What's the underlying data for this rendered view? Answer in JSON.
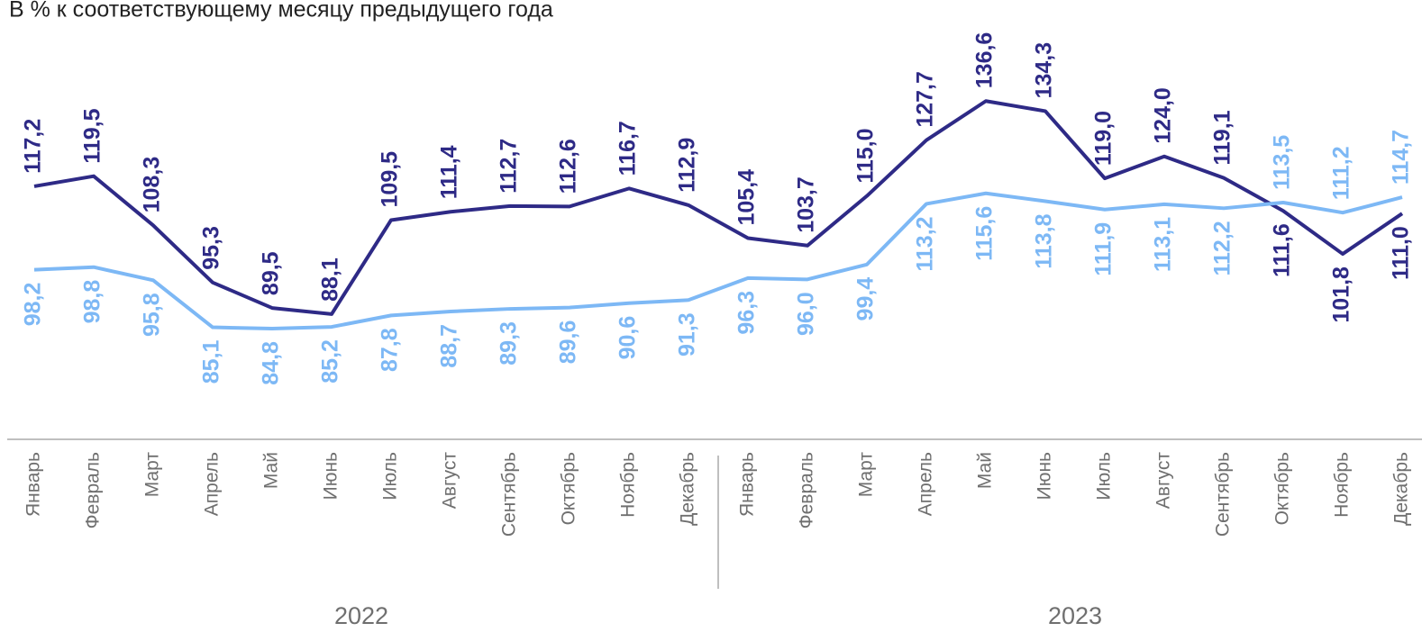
{
  "chart_data": {
    "type": "line",
    "subtitle": "В % к соответствующему месяцу предыдущего года",
    "categories": [
      "Январь",
      "Февраль",
      "Март",
      "Апрель",
      "Май",
      "Июнь",
      "Июль",
      "Август",
      "Сентябрь",
      "Октябрь",
      "Ноябрь",
      "Декабрь",
      "Январь",
      "Февраль",
      "Март",
      "Апрель",
      "Май",
      "Июнь",
      "Июль",
      "Август",
      "Сентябрь",
      "Октябрь",
      "Ноябрь",
      "Декабрь"
    ],
    "groups": [
      "2022",
      "2023"
    ],
    "ylim": [
      59.6,
      159.6
    ],
    "series": [
      {
        "color": "#2e2a86",
        "values": [
          117.2,
          119.5,
          108.3,
          95.3,
          89.5,
          88.1,
          109.5,
          111.4,
          112.7,
          112.6,
          116.7,
          112.9,
          105.4,
          103.7,
          115.0,
          127.7,
          136.6,
          134.3,
          119.0,
          124.0,
          119.1,
          111.6,
          101.8,
          111.0
        ],
        "value_labels": [
          "117,2",
          "119,5",
          "108,3",
          "95,3",
          "89,5",
          "88,1",
          "109,5",
          "111,4",
          "112,7",
          "112,6",
          "116,7",
          "112,9",
          "105,4",
          "103,7",
          "115,0",
          "127,7",
          "136,6",
          "134,3",
          "119,0",
          "124,0",
          "119,1",
          "111,6",
          "101,8",
          "111,0"
        ]
      },
      {
        "color": "#7db8f5",
        "values": [
          98.2,
          98.8,
          95.8,
          85.1,
          84.8,
          85.2,
          87.8,
          88.7,
          89.3,
          89.6,
          90.6,
          91.3,
          96.3,
          96.0,
          99.4,
          113.2,
          115.6,
          113.8,
          111.9,
          113.1,
          112.2,
          113.5,
          111.2,
          114.7
        ],
        "value_labels": [
          "98,2",
          "98,8",
          "95,8",
          "85,1",
          "84,8",
          "85,2",
          "87,8",
          "88,7",
          "89,3",
          "89,6",
          "90,6",
          "91,3",
          "96,3",
          "96,0",
          "99,4",
          "113,2",
          "115,6",
          "113,8",
          "111,9",
          "113,1",
          "112,2",
          "113,5",
          "111,2",
          "114,7"
        ]
      }
    ]
  }
}
